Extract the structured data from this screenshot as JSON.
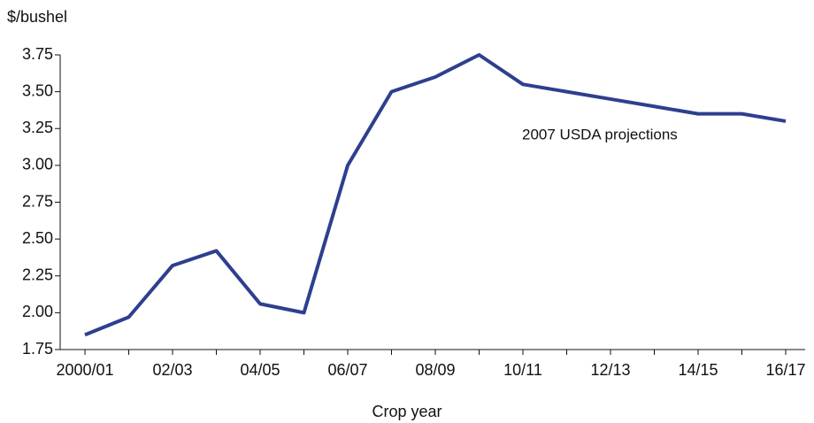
{
  "chart_data": {
    "type": "line",
    "y_label": "$/bushel",
    "x_label": "Crop year",
    "annotation": "2007 USDA projections",
    "categories": [
      "2000/01",
      null,
      "02/03",
      null,
      "04/05",
      null,
      "06/07",
      null,
      "08/09",
      null,
      "10/11",
      null,
      "12/13",
      null,
      "14/15",
      null,
      "16/17"
    ],
    "series": [
      {
        "color": "#2e3f8f",
        "values": [
          1.85,
          1.97,
          2.32,
          2.42,
          2.06,
          2.0,
          3.0,
          3.5,
          3.6,
          3.75,
          3.55,
          3.5,
          3.45,
          3.4,
          3.35,
          3.35,
          3.3
        ]
      }
    ],
    "ylim": [
      1.75,
      3.75
    ],
    "yticks": [
      1.75,
      {
        "value": 2,
        "label": "2.00"
      },
      2.25,
      {
        "value": 2.5,
        "label": "2.50"
      },
      2.75,
      {
        "value": 3,
        "label": "3.00"
      },
      3.25,
      {
        "value": 3.5,
        "label": "3.50"
      },
      3.75
    ]
  }
}
